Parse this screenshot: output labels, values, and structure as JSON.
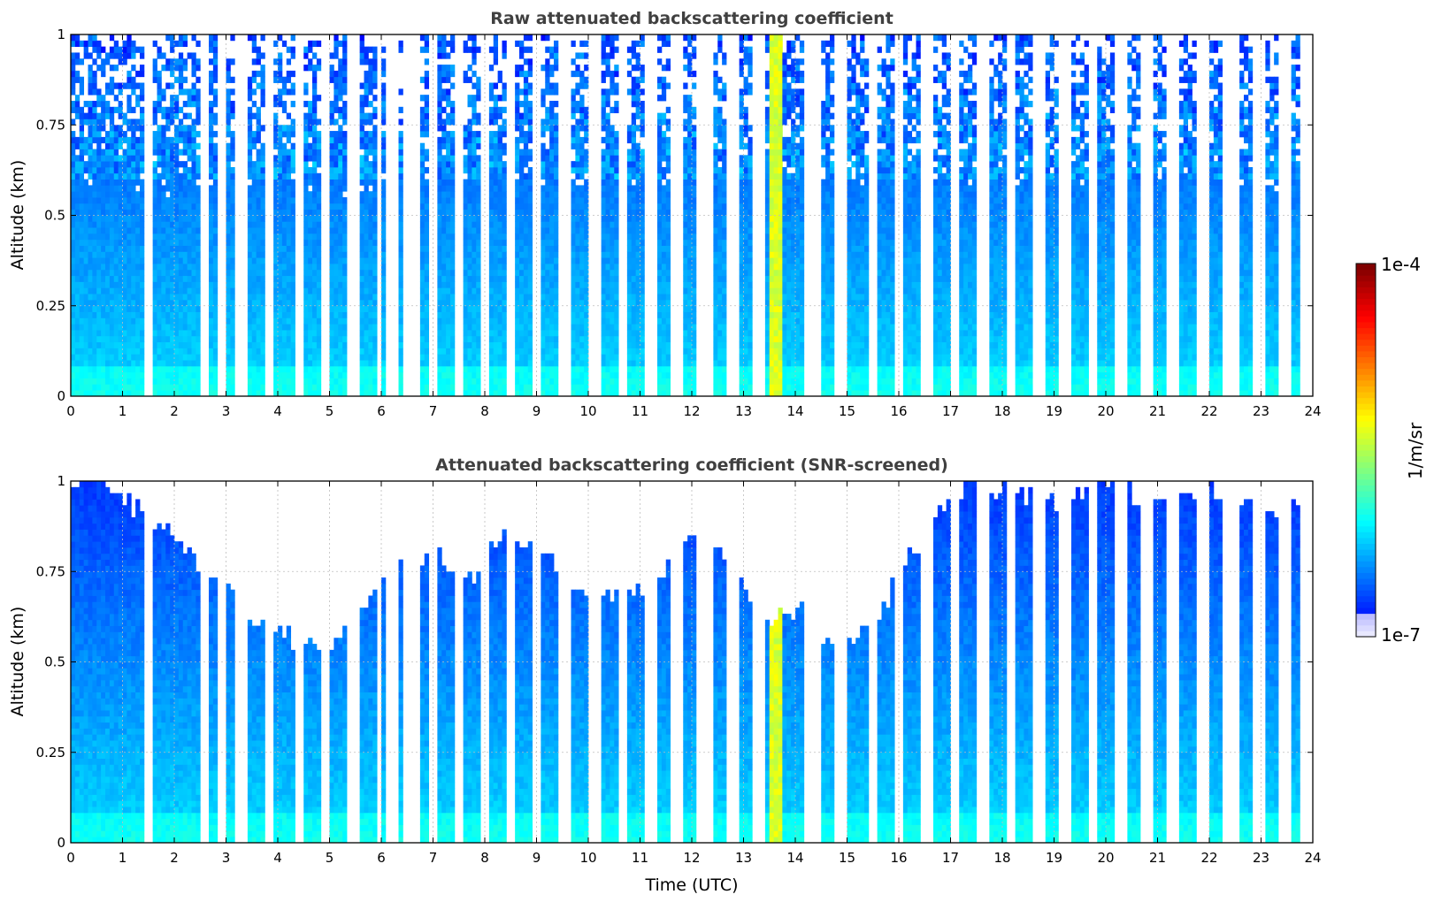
{
  "chart_data": [
    {
      "type": "heatmap",
      "title": "Raw attenuated backscattering coefficient",
      "xlabel": "",
      "ylabel": "Altitude (km)",
      "xlim": [
        0,
        24
      ],
      "ylim": [
        0,
        1
      ],
      "xticks": [
        0,
        1,
        2,
        3,
        4,
        5,
        6,
        7,
        8,
        9,
        10,
        11,
        12,
        13,
        14,
        15,
        16,
        17,
        18,
        19,
        20,
        21,
        22,
        23,
        24
      ],
      "yticks": [
        0,
        0.25,
        0.5,
        0.75,
        1
      ],
      "ytick_labels": [
        "0",
        "0.25",
        "0.5",
        "0.75",
        "1"
      ],
      "grid": true,
      "screened": false
    },
    {
      "type": "heatmap",
      "title": "Attenuated backscattering coefficient (SNR-screened)",
      "xlabel": "Time (UTC)",
      "ylabel": "Altitude (km)",
      "xlim": [
        0,
        24
      ],
      "ylim": [
        0,
        1
      ],
      "xticks": [
        0,
        1,
        2,
        3,
        4,
        5,
        6,
        7,
        8,
        9,
        10,
        11,
        12,
        13,
        14,
        15,
        16,
        17,
        18,
        19,
        20,
        21,
        22,
        23,
        24
      ],
      "yticks": [
        0,
        0.25,
        0.5,
        0.75,
        1
      ],
      "ytick_labels": [
        "0",
        "0.25",
        "0.5",
        "0.75",
        "1"
      ],
      "grid": true,
      "screened": true,
      "screen_top_km": [
        1.0,
        1.0,
        0.9,
        0.83,
        0.73,
        0.63,
        0.57,
        0.52,
        0.67,
        0.78,
        0.8,
        0.72,
        0.88,
        0.8,
        0.67,
        0.7,
        0.71,
        0.86,
        0.79,
        0.62,
        0.65,
        0.53,
        0.6,
        0.8,
        0.95,
        0.99,
        0.96,
        0.94,
        0.97,
        0.97,
        0.97,
        0.98,
        0.94,
        0.93,
        0.94
      ]
    }
  ],
  "colorbar": {
    "label": "1/m/sr",
    "max_label": "1e-4",
    "min_label": "1e-7",
    "colormap": "jet"
  },
  "data_gaps_utc": [
    [
      1.44,
      1.58
    ],
    [
      2.52,
      2.56
    ],
    [
      2.62,
      2.68
    ],
    [
      2.87,
      3.0
    ],
    [
      3.2,
      3.42
    ],
    [
      3.76,
      3.94
    ],
    [
      4.3,
      4.47
    ],
    [
      4.82,
      5.03
    ],
    [
      5.35,
      5.55
    ],
    [
      5.9,
      5.96
    ],
    [
      6.05,
      6.3
    ],
    [
      6.43,
      6.72
    ],
    [
      6.93,
      7.1
    ],
    [
      7.38,
      7.58
    ],
    [
      7.9,
      8.06
    ],
    [
      8.43,
      8.58
    ],
    [
      8.92,
      9.12
    ],
    [
      9.45,
      9.68
    ],
    [
      9.98,
      10.25
    ],
    [
      10.55,
      10.77
    ],
    [
      11.07,
      11.3
    ],
    [
      11.6,
      11.87
    ],
    [
      12.12,
      12.4
    ],
    [
      12.67,
      12.92
    ],
    [
      13.18,
      13.45
    ],
    [
      14.2,
      14.48
    ],
    [
      14.75,
      14.98
    ],
    [
      15.38,
      15.6
    ],
    [
      15.88,
      16.12
    ],
    [
      16.42,
      16.66
    ],
    [
      16.97,
      17.2
    ],
    [
      17.48,
      17.73
    ],
    [
      18.05,
      18.27
    ],
    [
      18.57,
      18.8
    ],
    [
      19.08,
      19.33
    ],
    [
      19.63,
      19.87
    ],
    [
      20.17,
      20.4
    ],
    [
      20.68,
      20.93
    ],
    [
      21.2,
      21.45
    ],
    [
      21.75,
      21.98
    ],
    [
      22.27,
      22.55
    ],
    [
      22.82,
      23.07
    ],
    [
      23.37,
      23.58
    ],
    [
      23.77,
      24.0
    ]
  ],
  "aerosol_layer_utc": [
    [
      5.95,
      6.04
    ],
    [
      13.47,
      13.76
    ]
  ]
}
